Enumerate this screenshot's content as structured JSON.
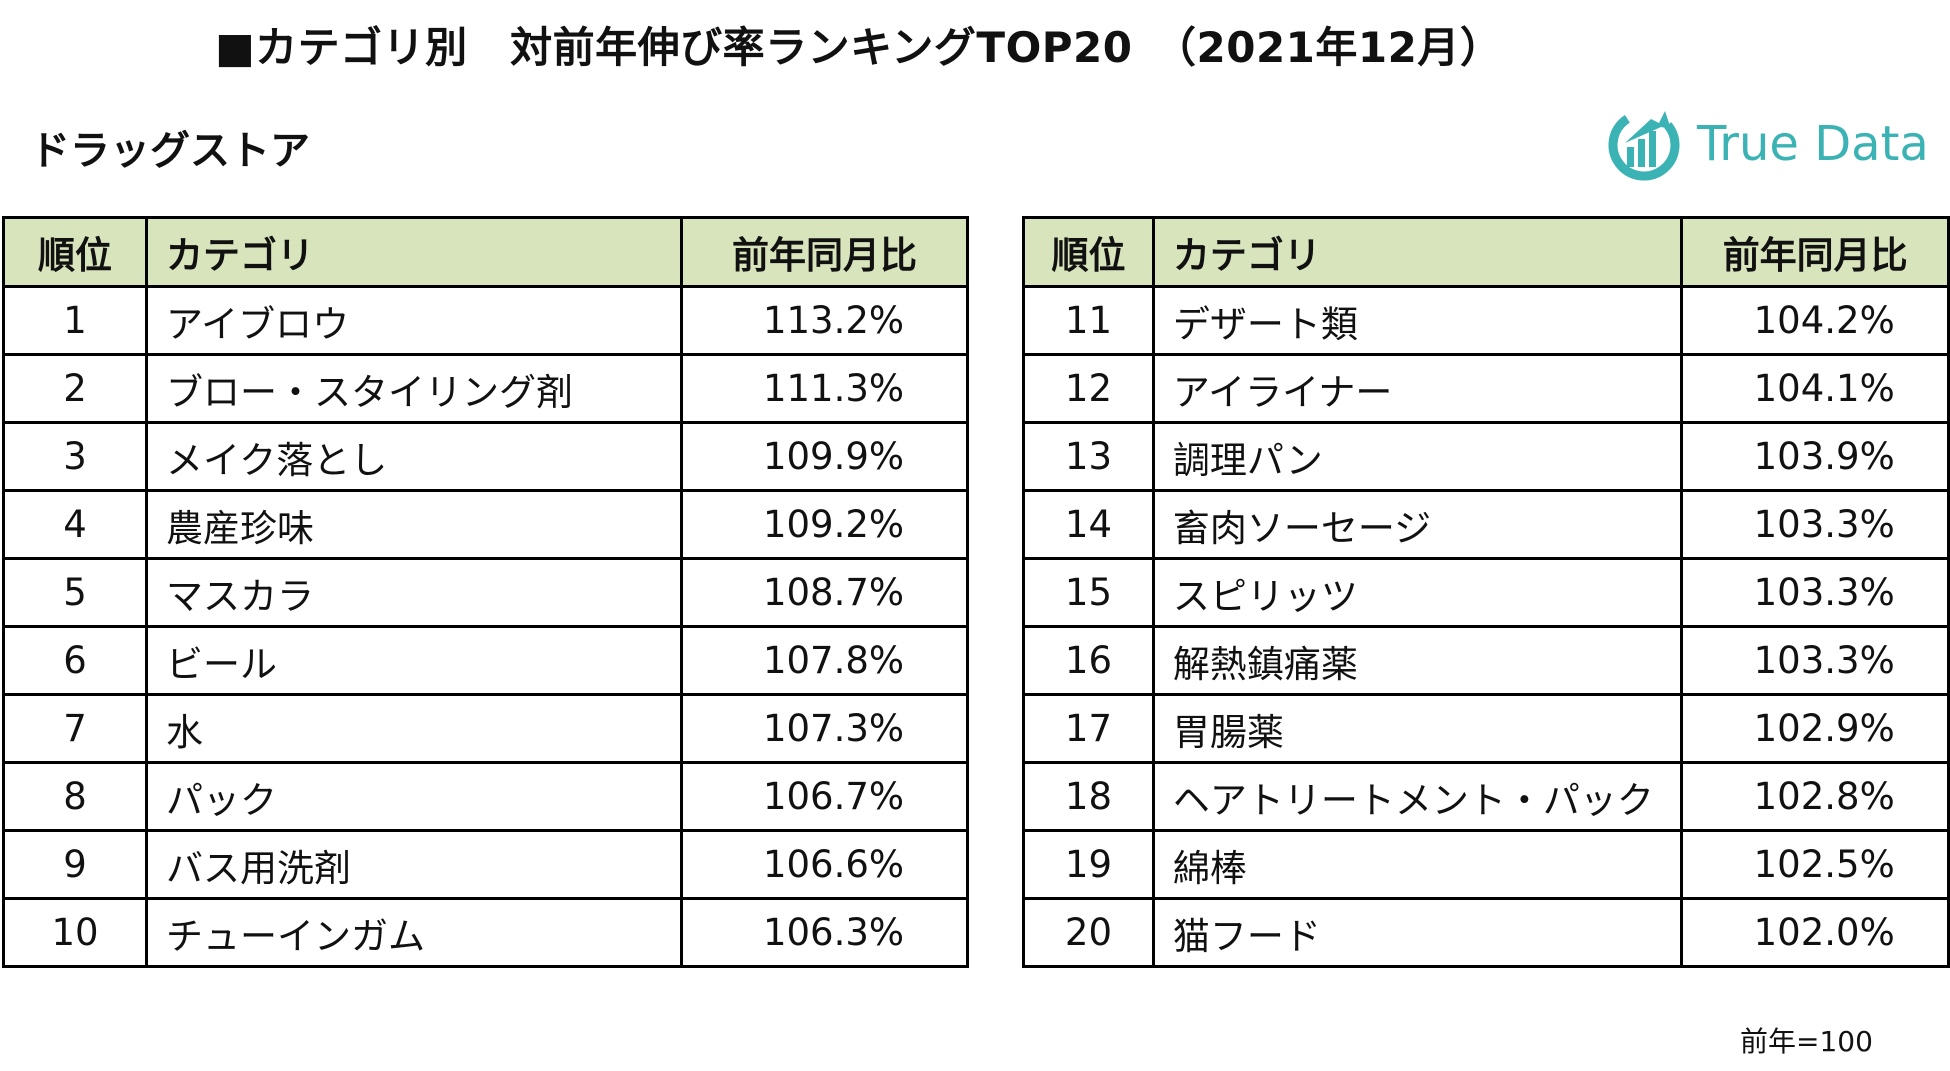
{
  "title": "■カテゴリ別　対前年伸び率ランキングTOP20　（2021年12月）",
  "section": "ドラッグストア",
  "logo": {
    "text": "True Data",
    "color": "#3bb2b3"
  },
  "table": {
    "header": {
      "rank": "順位",
      "category": "カテゴリ",
      "ratio": "前年同月比"
    },
    "header_bg": "#d8e4bc",
    "left_rows": [
      {
        "rank": "1",
        "category": "アイブロウ",
        "ratio": "113.2%"
      },
      {
        "rank": "2",
        "category": "ブロー・スタイリング剤",
        "ratio": "111.3%"
      },
      {
        "rank": "3",
        "category": "メイク落とし",
        "ratio": "109.9%"
      },
      {
        "rank": "4",
        "category": "農産珍味",
        "ratio": "109.2%"
      },
      {
        "rank": "5",
        "category": "マスカラ",
        "ratio": "108.7%"
      },
      {
        "rank": "6",
        "category": "ビール",
        "ratio": "107.8%"
      },
      {
        "rank": "7",
        "category": "水",
        "ratio": "107.3%"
      },
      {
        "rank": "8",
        "category": "パック",
        "ratio": "106.7%"
      },
      {
        "rank": "9",
        "category": "バス用洗剤",
        "ratio": "106.6%"
      },
      {
        "rank": "10",
        "category": "チューインガム",
        "ratio": "106.3%"
      }
    ],
    "right_rows": [
      {
        "rank": "11",
        "category": "デザート類",
        "ratio": "104.2%"
      },
      {
        "rank": "12",
        "category": "アイライナー",
        "ratio": "104.1%"
      },
      {
        "rank": "13",
        "category": "調理パン",
        "ratio": "103.9%"
      },
      {
        "rank": "14",
        "category": "畜肉ソーセージ",
        "ratio": "103.3%"
      },
      {
        "rank": "15",
        "category": "スピリッツ",
        "ratio": "103.3%"
      },
      {
        "rank": "16",
        "category": "解熱鎮痛薬",
        "ratio": "103.3%"
      },
      {
        "rank": "17",
        "category": "胃腸薬",
        "ratio": "102.9%"
      },
      {
        "rank": "18",
        "category": "ヘアトリートメント・パック",
        "ratio": "102.8%"
      },
      {
        "rank": "19",
        "category": "綿棒",
        "ratio": "102.5%"
      },
      {
        "rank": "20",
        "category": "猫フード",
        "ratio": "102.0%"
      }
    ]
  },
  "footnote": "前年=100"
}
